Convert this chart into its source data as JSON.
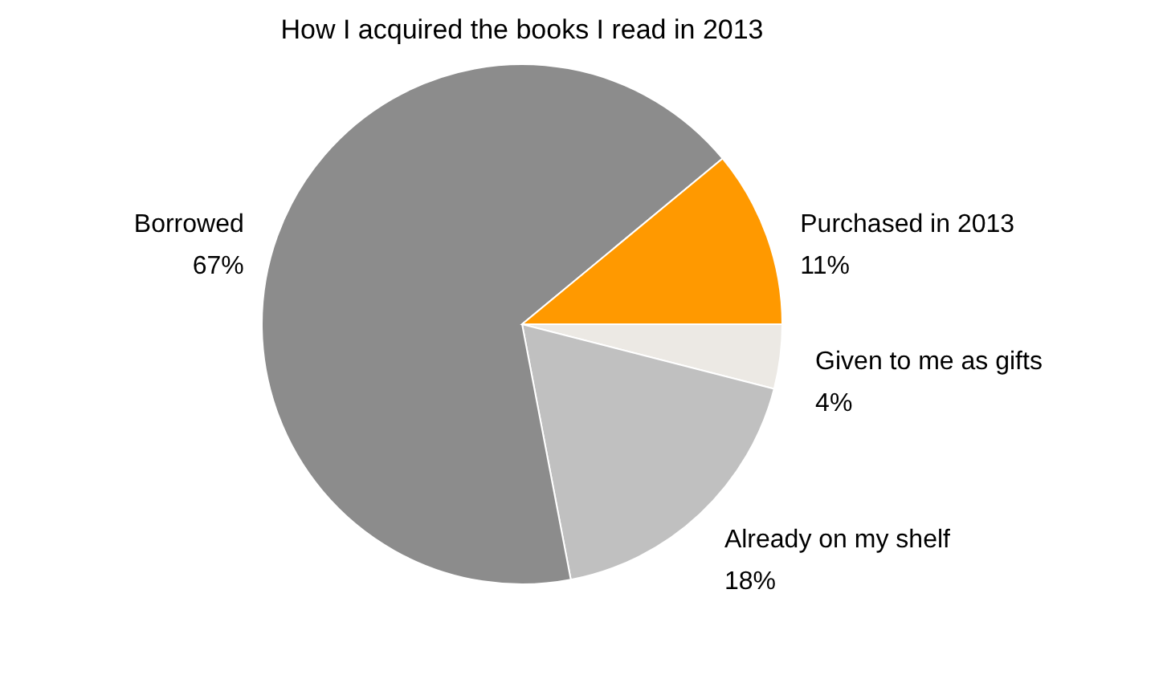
{
  "chart_data": {
    "type": "pie",
    "title": "How I acquired the books I read in 2013",
    "categories": [
      "Given to me as gifts",
      "Already on my shelf",
      "Borrowed",
      "Purchased in 2013"
    ],
    "values": [
      4,
      18,
      67,
      11
    ],
    "value_labels": [
      "4%",
      "18%",
      "67%",
      "11%"
    ],
    "colors": [
      "#ece9e4",
      "#c0c0c0",
      "#8c8c8c",
      "#ff9900"
    ],
    "legend": false
  }
}
